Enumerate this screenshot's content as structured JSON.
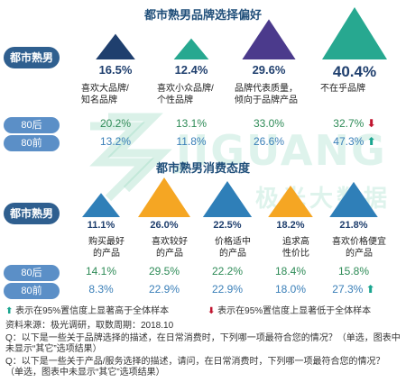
{
  "colors": {
    "navy": "#1f3f6e",
    "teal": "#27a890",
    "purple": "#4b3a8c",
    "orange": "#f5a623",
    "blue": "#2f7fb8",
    "label_blue": "#5b8fc7",
    "up": "#1aa58f",
    "down": "#c0152f"
  },
  "watermark": {
    "text_en": "JIGUANG",
    "text_cn": "极光大数据"
  },
  "chart_data": [
    {
      "type": "table",
      "title": "都市熟男品牌选择偏好",
      "segment_label": "都市熟男",
      "categories": [
        "喜欢大品牌/\n知名品牌",
        "喜欢小众品牌/\n个性品牌",
        "品牌代表质量，\n倾向于品牌产品",
        "不在乎品牌"
      ],
      "headline_values": [
        "16.5%",
        "12.4%",
        "29.6%",
        "40.4%"
      ],
      "series": [
        {
          "name": "80后",
          "values": [
            "20.2%",
            "13.1%",
            "33.0%",
            "32.7%"
          ],
          "markers": [
            "",
            "",
            "",
            "down"
          ]
        },
        {
          "name": "80前",
          "values": [
            "13.2%",
            "11.8%",
            "26.6%",
            "47.3%"
          ],
          "markers": [
            "",
            "",
            "",
            "up"
          ]
        }
      ]
    },
    {
      "type": "table",
      "title": "都市熟男消费态度",
      "segment_label": "都市熟男",
      "categories": [
        "购买最好\n的产品",
        "喜欢较好\n的产品",
        "价格适中\n的产品",
        "追求高\n性价比",
        "喜欢价格便宜\n的产品"
      ],
      "headline_values": [
        "11.1%",
        "26.0%",
        "22.5%",
        "18.2%",
        "21.8%"
      ],
      "series": [
        {
          "name": "80后",
          "values": [
            "14.1%",
            "29.5%",
            "22.2%",
            "18.4%",
            "15.8%"
          ],
          "markers": [
            "",
            "",
            "",
            "",
            ""
          ]
        },
        {
          "name": "80前",
          "values": [
            "8.3%",
            "22.9%",
            "22.9%",
            "18.0%",
            "27.3%"
          ],
          "markers": [
            "",
            "",
            "",
            "",
            "up"
          ]
        }
      ]
    }
  ],
  "notes": {
    "legend_up": "表示在95%置信度上显著高于全体样本",
    "legend_down": "表示在95%置信度上显著低于全体样本",
    "source": "资料来源：极光调研，取数周期：2018.10",
    "q1": "Q：以下是一些关于品牌选择的描述，在日常消费时，下列哪一项最符合您的情况？（单选，图表中未显示“其它”选项结果）",
    "q2": "Q：以下是一些关于产品/服务选择的描述，请问，在日常消费时，下列哪一项最符合您的情况？（单选，图表中未显示“其它”选项结果）"
  }
}
